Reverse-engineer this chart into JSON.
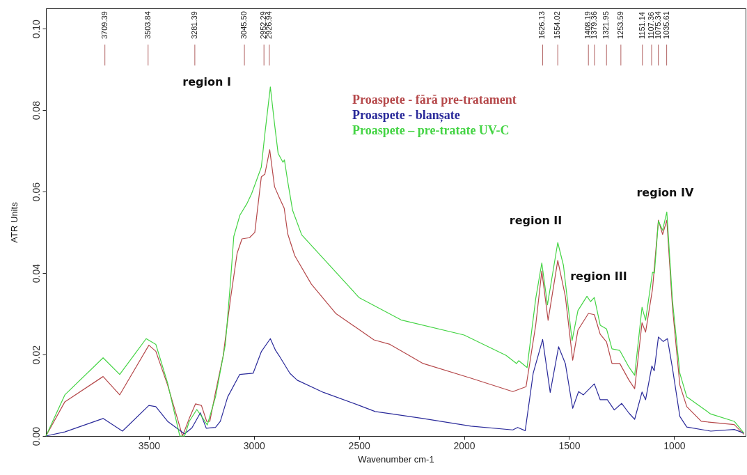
{
  "chart_data": {
    "type": "line",
    "xlabel": "Wavenumber cm-1",
    "ylabel": "ATR Units",
    "xlim": [
      3990,
      660
    ],
    "ylim": [
      0,
      0.105
    ],
    "xticks": [
      3500,
      3000,
      2500,
      2000,
      1500,
      1000
    ],
    "yticks": [
      {
        "value": 0,
        "label": "0.00"
      },
      {
        "value": 0.02,
        "label": "0.02"
      },
      {
        "value": 0.04,
        "label": "0.04"
      },
      {
        "value": 0.06,
        "label": "0.06"
      },
      {
        "value": 0.08,
        "label": "0.08"
      },
      {
        "value": 0.1,
        "label": "0.10"
      }
    ],
    "grid": false,
    "legend": "top",
    "marker": "none",
    "line_style": "solid",
    "series": [
      {
        "name": "Proaspete - fără pre-tratament",
        "color": "#b5484a",
        "x": [
          3990,
          3900,
          3718,
          3639,
          3500,
          3467,
          3411,
          3340,
          3308,
          3278,
          3250,
          3225,
          3210,
          3183,
          3147,
          3113,
          3080,
          3057,
          3021,
          2996,
          2965,
          2948,
          2925,
          2902,
          2879,
          2856,
          2839,
          2806,
          2727,
          2611,
          2429,
          2353,
          2195,
          1967,
          1768,
          1705,
          1659,
          1630,
          1600,
          1554,
          1518,
          1483,
          1458,
          1408,
          1380,
          1352,
          1322,
          1296,
          1259,
          1215,
          1188,
          1153,
          1136,
          1103,
          1075,
          1055,
          1035,
          1008,
          973,
          940,
          871,
          714,
          668
        ],
        "values": [
          0,
          0.0084,
          0.0146,
          0.0101,
          0.0223,
          0.0208,
          0.0125,
          0,
          0.0043,
          0.0079,
          0.0075,
          0.0036,
          0.0036,
          0.0107,
          0.0195,
          0.0332,
          0.0449,
          0.0484,
          0.0487,
          0.05,
          0.0636,
          0.0643,
          0.0703,
          0.0612,
          0.0585,
          0.0559,
          0.0496,
          0.0443,
          0.0373,
          0.0301,
          0.0236,
          0.0225,
          0.0178,
          0.0142,
          0.0109,
          0.0121,
          0.0272,
          0.0405,
          0.0284,
          0.0431,
          0.0343,
          0.0186,
          0.026,
          0.0301,
          0.0298,
          0.025,
          0.0231,
          0.0178,
          0.0178,
          0.0137,
          0.0116,
          0.0278,
          0.0255,
          0.0361,
          0.053,
          0.0495,
          0.053,
          0.0315,
          0.0125,
          0.0072,
          0.0036,
          0.0028,
          0.0004
        ]
      },
      {
        "name": "Proaspete - blanșate",
        "color": "#2a2a9a",
        "x": [
          3990,
          3900,
          3718,
          3626,
          3500,
          3467,
          3411,
          3364,
          3330,
          3295,
          3255,
          3227,
          3183,
          3160,
          3125,
          3068,
          3004,
          2965,
          2922,
          2897,
          2880,
          2829,
          2794,
          2669,
          2499,
          2423,
          2353,
          2195,
          1967,
          1768,
          1745,
          1709,
          1671,
          1626,
          1590,
          1550,
          1518,
          1483,
          1455,
          1432,
          1380,
          1352,
          1318,
          1285,
          1250,
          1215,
          1188,
          1153,
          1136,
          1106,
          1095,
          1075,
          1052,
          1032,
          1008,
          973,
          940,
          826,
          714,
          668
        ],
        "values": [
          0,
          0.001,
          0.0043,
          0.0012,
          0.0075,
          0.0072,
          0.0036,
          0.0018,
          0.0005,
          0.002,
          0.0057,
          0.0019,
          0.0021,
          0.0036,
          0.0096,
          0.0151,
          0.0154,
          0.0207,
          0.0239,
          0.021,
          0.0197,
          0.0154,
          0.0137,
          0.0107,
          0.0075,
          0.006,
          0.0055,
          0.0043,
          0.0024,
          0.0015,
          0.0021,
          0.0013,
          0.0154,
          0.0237,
          0.0107,
          0.0219,
          0.0178,
          0.0068,
          0.0109,
          0.0101,
          0.0128,
          0.0089,
          0.0089,
          0.0064,
          0.008,
          0.0056,
          0.0041,
          0.0108,
          0.0089,
          0.0172,
          0.016,
          0.0243,
          0.0232,
          0.0239,
          0.0166,
          0.0048,
          0.0022,
          0.0012,
          0.0016,
          0.0007
        ]
      },
      {
        "name": "Proaspete – pre-tratate UV-C",
        "color": "#44d444",
        "x": [
          3990,
          3900,
          3718,
          3639,
          3513,
          3467,
          3411,
          3353,
          3330,
          3308,
          3272,
          3249,
          3222,
          3183,
          3136,
          3113,
          3096,
          3067,
          3034,
          3011,
          2965,
          2948,
          2922,
          2902,
          2885,
          2862,
          2855,
          2839,
          2816,
          2773,
          2500,
          2300,
          2000,
          1800,
          1750,
          1740,
          1700,
          1659,
          1630,
          1603,
          1554,
          1527,
          1486,
          1458,
          1415,
          1398,
          1380,
          1352,
          1322,
          1296,
          1259,
          1215,
          1188,
          1153,
          1136,
          1103,
          1094,
          1075,
          1055,
          1035,
          1008,
          973,
          940,
          826,
          714,
          668
        ],
        "values": [
          0,
          0.0101,
          0.0192,
          0.0151,
          0.0239,
          0.0225,
          0.013,
          0,
          0,
          0.0036,
          0.0065,
          0.0048,
          0.0027,
          0.0096,
          0.0225,
          0.037,
          0.049,
          0.0542,
          0.057,
          0.0595,
          0.066,
          0.0742,
          0.0857,
          0.0766,
          0.0694,
          0.0672,
          0.0678,
          0.0624,
          0.0554,
          0.0494,
          0.034,
          0.0285,
          0.0248,
          0.0198,
          0.0178,
          0.0185,
          0.0168,
          0.0337,
          0.0425,
          0.0322,
          0.0475,
          0.0419,
          0.0234,
          0.0308,
          0.0343,
          0.033,
          0.034,
          0.0272,
          0.0263,
          0.0214,
          0.021,
          0.0169,
          0.0149,
          0.0316,
          0.0284,
          0.0402,
          0.04,
          0.0528,
          0.0505,
          0.055,
          0.0332,
          0.0154,
          0.0096,
          0.0054,
          0.0036,
          0.0007
        ]
      }
    ],
    "ref_lines": [
      {
        "axis": "x",
        "value": 3709.39,
        "label": "3709.39"
      },
      {
        "axis": "x",
        "value": 3503.84,
        "label": "3503.84"
      },
      {
        "axis": "x",
        "value": 3281.39,
        "label": "3281.39"
      },
      {
        "axis": "x",
        "value": 3045.5,
        "label": "3045.50"
      },
      {
        "axis": "x",
        "value": 2952.29,
        "label": "2952.29"
      },
      {
        "axis": "x",
        "value": 2926.94,
        "label": "2926.94"
      },
      {
        "axis": "x",
        "value": 1626.13,
        "label": "1626.13"
      },
      {
        "axis": "x",
        "value": 1554.02,
        "label": "1554.02"
      },
      {
        "axis": "x",
        "value": 1408.19,
        "label": "1408.19"
      },
      {
        "axis": "x",
        "value": 1379.36,
        "label": "1379.36"
      },
      {
        "axis": "x",
        "value": 1321.95,
        "label": "1321.95"
      },
      {
        "axis": "x",
        "value": 1253.59,
        "label": "1253.59"
      },
      {
        "axis": "x",
        "value": 1151.14,
        "label": "1151.14"
      },
      {
        "axis": "x",
        "value": 1107.36,
        "label": "1107.36"
      },
      {
        "axis": "x",
        "value": 1075.34,
        "label": "1075.34"
      },
      {
        "axis": "x",
        "value": 1035.61,
        "label": "1035.61"
      }
    ],
    "annotations": [
      "region I",
      "region II",
      "region III",
      "region IV"
    ]
  }
}
